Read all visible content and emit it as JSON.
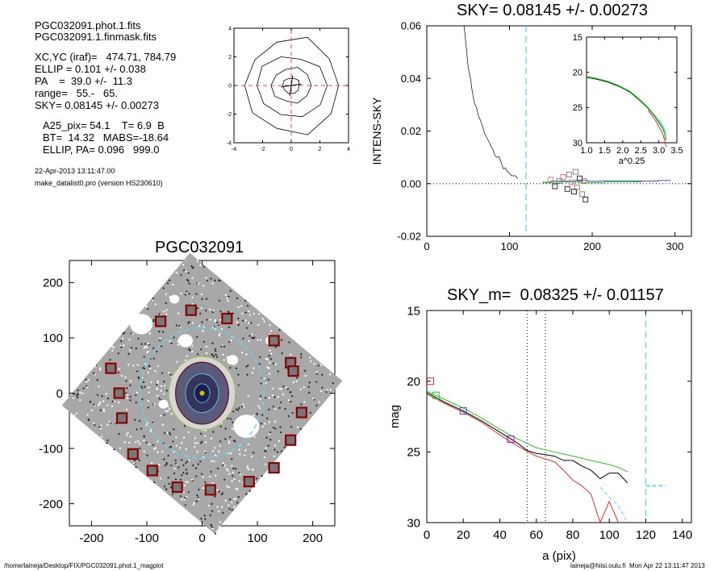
{
  "info": {
    "files": [
      "PGC032091.phot.1.fits",
      "PGC032091.1.finmask.fits"
    ],
    "params": [
      "XC,YC (iraf)=   474.71, 784.79",
      "ELLIP = 0.101 +/- 0.038",
      "PA    =  39.0 +/-  11.3",
      "range=   55.-   65.",
      "SKY= 0.08145 +/- 0.00273"
    ],
    "params2": [
      "A25_pix= 54.1    T= 6.9  B",
      "BT=  14.32   MABS=-18.64",
      "ELLIP, PA= 0.096   999.0"
    ],
    "date": "22-Apr-2013 13:11:47.00",
    "program": "make_datalist0.pro (version HS230610)"
  },
  "footer": {
    "path": "/home/laineja/Desktop/FIX/PGC032091.phot.1_magplot",
    "user": "laineja@hiisi.oulu.fi  Mon Apr 22 13:11:47 2013"
  },
  "chart_data": [
    {
      "id": "contour",
      "type": "contour",
      "xlim": [
        -4,
        4
      ],
      "ylim": [
        -4,
        4
      ],
      "xticks": [
        -4,
        -2,
        0,
        2,
        4
      ],
      "yticks": [
        -4,
        -2,
        0,
        2,
        4
      ],
      "colors": {
        "cross": "#e04848",
        "contour": "#000000"
      }
    },
    {
      "id": "sky",
      "type": "line",
      "title": "SKY= 0.08145 +/- 0.00273",
      "ylabel": "INTENS-SKY",
      "xlim": [
        0,
        320
      ],
      "ylim": [
        -0.02,
        0.06
      ],
      "xticks": [
        0,
        100,
        200,
        300
      ],
      "ytick_labels": [
        "-0.02",
        "0.00",
        "0.02",
        "0.04",
        "0.06"
      ],
      "yticks": [
        -0.02,
        0,
        0.02,
        0.04,
        0.06
      ],
      "vline": 120,
      "profile": {
        "x": [
          45,
          50,
          55,
          60,
          65,
          70,
          75,
          80,
          85,
          90,
          95,
          100,
          105,
          110
        ],
        "y": [
          0.06,
          0.044,
          0.035,
          0.029,
          0.024,
          0.019,
          0.016,
          0.013,
          0.01,
          0.008,
          0.006,
          0.004,
          0.003,
          0.002
        ]
      },
      "box_points": {
        "x": [
          150,
          155,
          160,
          165,
          170,
          172,
          175,
          178,
          180,
          182,
          185,
          188,
          190,
          192
        ],
        "y": [
          0.0015,
          -0.001,
          0.001,
          0.0025,
          -0.002,
          0.0035,
          0.0005,
          -0.003,
          0.0045,
          -0.0015,
          0.002,
          -0.004,
          0.001,
          -0.006
        ]
      },
      "colors": {
        "vline": "#5fd9ea",
        "profile": "#000000",
        "green": "#22c922",
        "blue": "#4b4bd6"
      }
    },
    {
      "id": "inset",
      "type": "line",
      "xlabel": "a^0.25",
      "xlim": [
        1.0,
        3.5
      ],
      "ylim": [
        30,
        15
      ],
      "xticks": [
        1.0,
        1.5,
        2.0,
        2.5,
        3.0,
        3.5
      ],
      "xtick_labels": [
        "1.0",
        "1.5",
        "2.0",
        "2.5",
        "3.0",
        "3.5"
      ],
      "yticks": [
        15,
        20,
        25,
        30
      ],
      "x": [
        1.0,
        1.3,
        1.6,
        1.9,
        2.2,
        2.5,
        2.7,
        2.9,
        3.0,
        3.1,
        3.15,
        3.2
      ],
      "y": [
        20.6,
        20.9,
        21.3,
        21.9,
        22.7,
        24.0,
        25.0,
        26.2,
        27.0,
        27.8,
        28.4,
        29.5
      ],
      "colors": {
        "green": "#22c922",
        "red": "#e03030",
        "black": "#000000",
        "cyan": "#5fd9ea"
      }
    },
    {
      "id": "image",
      "type": "image",
      "title": "PGC032091",
      "xlim": [
        -240,
        240
      ],
      "ylim": [
        -240,
        240
      ],
      "xticks": [
        -200,
        -100,
        0,
        100,
        200
      ],
      "yticks": [
        -200,
        -100,
        0,
        100,
        200
      ],
      "colors": {
        "frame": "#4a4a4a",
        "mask": "#8b0000",
        "ellipse": "#5fd9ea",
        "core": "#1c1c50"
      }
    },
    {
      "id": "mag",
      "type": "line",
      "title": "SKY_m=  0.08325 +/- 0.01157",
      "xlabel": "a (pix)",
      "ylabel": "mag",
      "xlim": [
        0,
        145
      ],
      "ylim": [
        30,
        15
      ],
      "xticks": [
        0,
        20,
        40,
        60,
        80,
        100,
        120,
        140
      ],
      "yticks": [
        15,
        20,
        25,
        30
      ],
      "dotted_vlines": [
        55,
        65
      ],
      "vline": 120,
      "sky_level": 27.4,
      "series": [
        {
          "color": "#000000",
          "x": [
            0,
            10,
            20,
            30,
            40,
            50,
            55,
            60,
            65,
            70,
            75,
            80,
            85,
            90,
            95,
            100,
            105,
            110
          ],
          "y": [
            20.8,
            21.5,
            22.1,
            22.8,
            23.6,
            24.4,
            24.9,
            25.1,
            25.2,
            25.3,
            25.6,
            25.6,
            26.0,
            26.3,
            26.9,
            26.5,
            26.5,
            27.2
          ]
        },
        {
          "color": "#22c922",
          "x": [
            0,
            10,
            20,
            30,
            40,
            50,
            60,
            70,
            80,
            90,
            100,
            105,
            110
          ],
          "y": [
            20.7,
            21.3,
            21.9,
            22.6,
            23.4,
            24.1,
            24.7,
            25.0,
            25.3,
            25.6,
            25.9,
            26.1,
            26.4
          ]
        },
        {
          "color": "#e03030",
          "x": [
            0,
            10,
            20,
            30,
            40,
            50,
            60,
            65,
            70,
            75,
            80,
            85,
            90,
            95,
            100,
            105
          ],
          "y": [
            20.9,
            21.6,
            22.2,
            22.9,
            23.8,
            24.6,
            25.3,
            25.5,
            25.7,
            26.3,
            27.0,
            27.4,
            28.0,
            30.0,
            28.5,
            30.0
          ]
        },
        {
          "color": "#5fd9ea",
          "x": [
            95,
            100,
            105,
            110
          ],
          "y": [
            27.5,
            28.2,
            28.8,
            30.0
          ]
        }
      ],
      "squares": [
        {
          "x": 2,
          "y": 20.0,
          "color": "#e03030"
        },
        {
          "x": 5,
          "y": 21.0,
          "color": "#22c922"
        },
        {
          "x": 20,
          "y": 22.1,
          "color": "#4b4bd6"
        },
        {
          "x": 46,
          "y": 24.1,
          "color": "#c000c0"
        }
      ]
    }
  ]
}
